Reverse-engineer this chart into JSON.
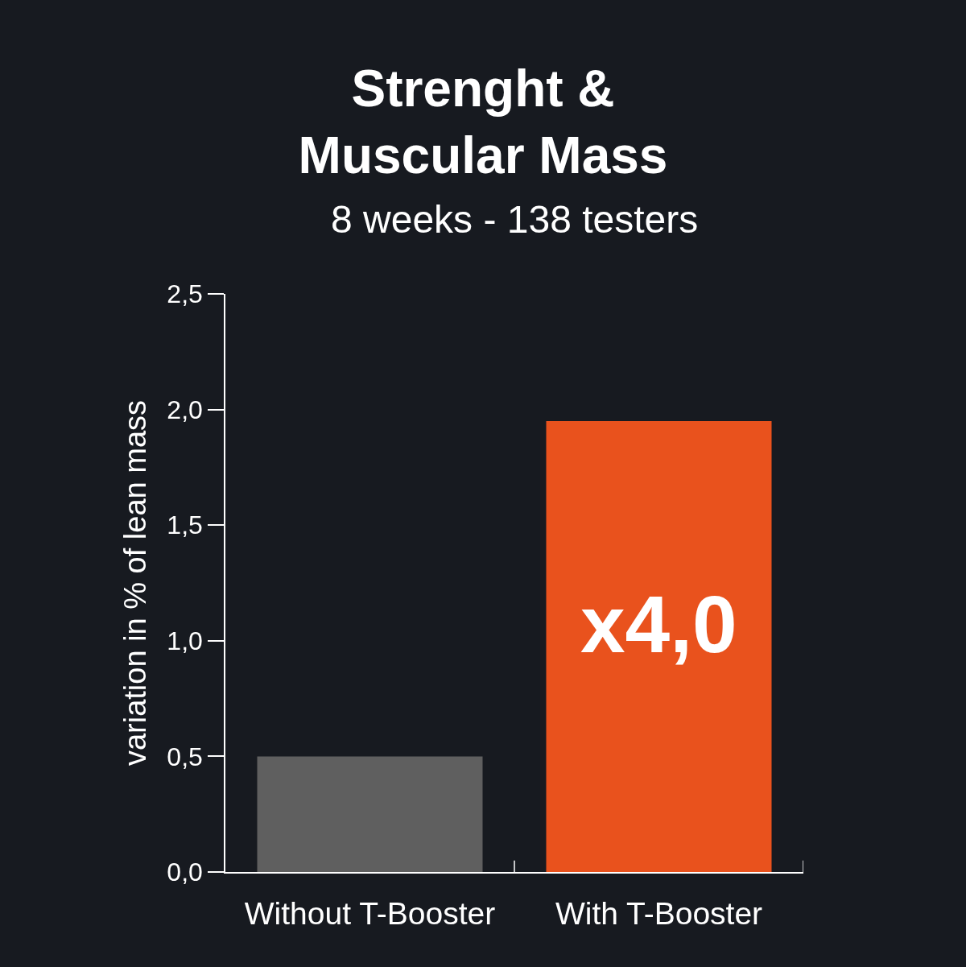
{
  "chart_data": {
    "type": "bar",
    "title": "Strenght & Muscular Mass",
    "subtitle": "8 weeks - 138 testers",
    "ylabel": "variation in % of lean mass",
    "categories": [
      "Without T-Booster",
      "With T-Booster"
    ],
    "values": [
      0.5,
      1.95
    ],
    "colors": [
      "#5f5f5f",
      "#e9521d"
    ],
    "ylim": [
      0,
      2.5
    ],
    "yticks": [
      {
        "value": 0,
        "label": "0,0"
      },
      {
        "value": 0.5,
        "label": "0,5"
      },
      {
        "value": 1.0,
        "label": "1,0"
      },
      {
        "value": 1.5,
        "label": "1,5"
      },
      {
        "value": 2.0,
        "label": "2,0"
      },
      {
        "value": 2.5,
        "label": "2,5"
      }
    ],
    "annotations": [
      "x4,0"
    ],
    "grid": false
  }
}
